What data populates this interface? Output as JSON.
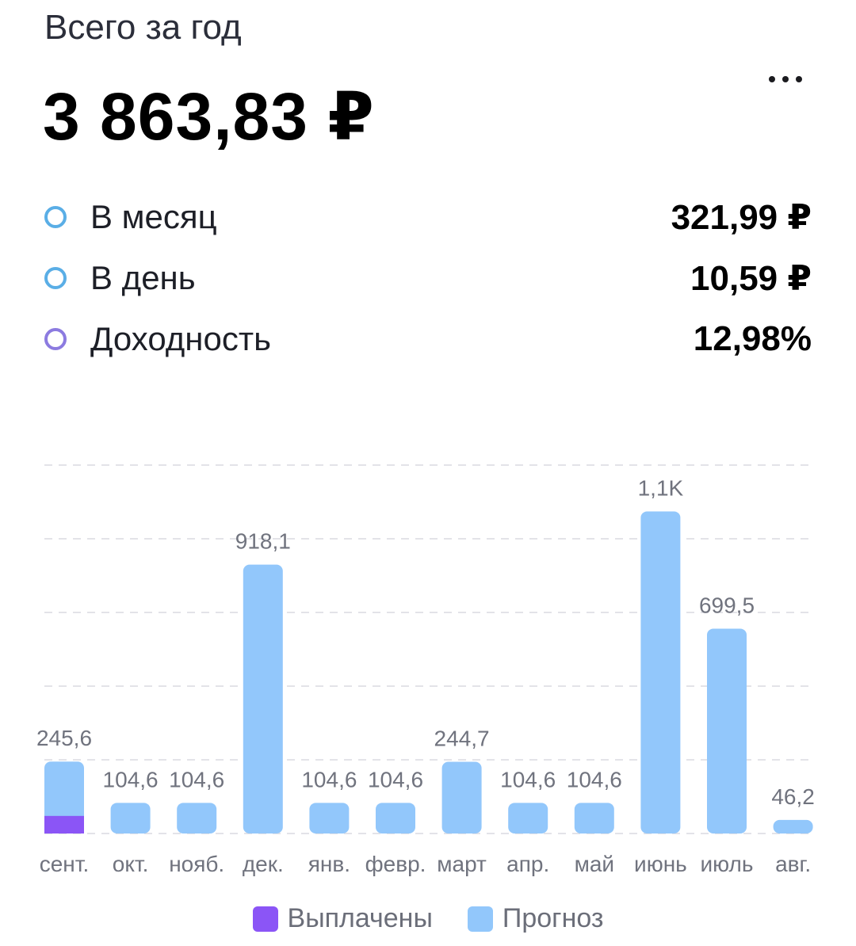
{
  "header": {
    "subtitle": "Всего за год",
    "total": "3 863,83 ₽"
  },
  "stats": [
    {
      "label": "В месяц",
      "value": "321,99 ₽",
      "ring_color": "#5aaee6"
    },
    {
      "label": "В день",
      "value": "10,59 ₽",
      "ring_color": "#5aaee6"
    },
    {
      "label": "Доходность",
      "value": "12,98%",
      "ring_color": "#8c7be0"
    }
  ],
  "legend": {
    "paid_label": "Выплачены",
    "forecast_label": "Прогноз"
  },
  "colors": {
    "paid": "#8b55f6",
    "forecast": "#92c7fb",
    "grid": "#e3e3e8",
    "label": "#70737e"
  },
  "chart_data": {
    "type": "bar",
    "stacked": true,
    "categories": [
      "сент.",
      "окт.",
      "нояб.",
      "дек.",
      "янв.",
      "февр.",
      "март",
      "апр.",
      "май",
      "июнь",
      "июль",
      "авг."
    ],
    "series": [
      {
        "name": "Выплачены",
        "values": [
          60,
          0,
          0,
          0,
          0,
          0,
          0,
          0,
          0,
          0,
          0,
          0
        ]
      },
      {
        "name": "Прогноз",
        "values": [
          185.6,
          104.6,
          104.6,
          918.1,
          104.6,
          104.6,
          244.7,
          104.6,
          104.6,
          1100,
          699.5,
          46.2
        ]
      }
    ],
    "data_labels": [
      "245,6",
      "104,6",
      "104,6",
      "918,1",
      "104,6",
      "104,6",
      "244,7",
      "104,6",
      "104,6",
      "1,1K",
      "699,5",
      "46,2"
    ],
    "totals": [
      245.6,
      104.6,
      104.6,
      918.1,
      104.6,
      104.6,
      244.7,
      104.6,
      104.6,
      1100,
      699.5,
      46.2
    ],
    "ylim": [
      0,
      1250
    ],
    "grid": true,
    "legend_position": "bottom"
  }
}
